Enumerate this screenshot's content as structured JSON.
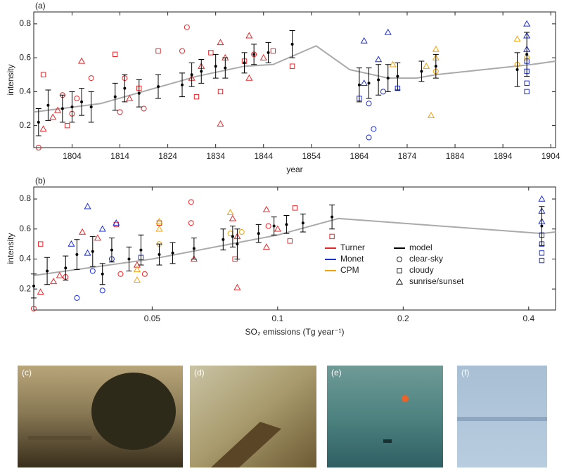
{
  "chart_data": [
    {
      "type": "scatter",
      "panel_label": "(a)",
      "xlabel": "year",
      "ylabel": "intensity",
      "xlim": [
        1796,
        1905
      ],
      "ylim": [
        0.07,
        0.87
      ],
      "xticks": [
        1804,
        1814,
        1824,
        1834,
        1844,
        1854,
        1864,
        1874,
        1884,
        1894,
        1904
      ],
      "yticks": [
        0.2,
        0.4,
        0.6,
        0.8
      ],
      "series": [
        {
          "name": "Turner",
          "color": "#e8262a",
          "x": [
            1797,
            1798,
            1798,
            1800,
            1801,
            1802,
            1803,
            1804,
            1805,
            1806,
            1808,
            1813,
            1814,
            1815,
            1816,
            1818,
            1819,
            1822,
            1827,
            1828,
            1829,
            1830,
            1831,
            1833,
            1835,
            1835,
            1835,
            1836,
            1840,
            1841,
            1841,
            1842,
            1844,
            1846,
            1850
          ],
          "values": [
            0.07,
            0.5,
            0.18,
            0.25,
            0.29,
            0.38,
            0.2,
            0.27,
            0.36,
            0.58,
            0.48,
            0.62,
            0.28,
            0.48,
            0.36,
            0.42,
            0.3,
            0.64,
            0.64,
            0.78,
            0.48,
            0.37,
            0.55,
            0.63,
            0.69,
            0.21,
            0.4,
            0.6,
            0.58,
            0.73,
            0.48,
            0.62,
            0.6,
            0.64,
            0.55
          ],
          "markers": [
            "o",
            "s",
            "^",
            "^",
            "^",
            "o",
            "s",
            "o",
            "o",
            "^",
            "o",
            "s",
            "o",
            "o",
            "^",
            "s",
            "o",
            "s",
            "o",
            "o",
            "^",
            "s",
            "^",
            "s",
            "^",
            "^",
            "s",
            "^",
            "s",
            "^",
            "^",
            "o",
            "^",
            "s",
            "s"
          ]
        },
        {
          "name": "Monet",
          "color": "#1f2fd6",
          "x": [
            1864,
            1865,
            1865,
            1866,
            1866,
            1867,
            1868,
            1869,
            1870,
            1872,
            1899,
            1899,
            1899,
            1899,
            1899,
            1899,
            1899
          ],
          "values": [
            0.36,
            0.7,
            0.45,
            0.33,
            0.13,
            0.18,
            0.59,
            0.4,
            0.75,
            0.42,
            0.8,
            0.73,
            0.65,
            0.58,
            0.52,
            0.45,
            0.4
          ],
          "markers": [
            "s",
            "^",
            "^",
            "o",
            "o",
            "o",
            "^",
            "o",
            "^",
            "s",
            "^",
            "^",
            "^",
            "s",
            "s",
            "s",
            "s"
          ]
        },
        {
          "name": "CPM",
          "color": "#f0a30a",
          "x": [
            1871,
            1878,
            1879,
            1880,
            1880,
            1880,
            1897,
            1897,
            1899
          ],
          "values": [
            0.56,
            0.55,
            0.26,
            0.65,
            0.6,
            0.52,
            0.71,
            0.56,
            0.6
          ],
          "markers": [
            "^",
            "^",
            "^",
            "^",
            "^",
            "o",
            "^",
            "o",
            "o"
          ]
        },
        {
          "name": "model",
          "color": "#000000",
          "x": [
            1797,
            1799,
            1802,
            1804,
            1806,
            1808,
            1813,
            1815,
            1818,
            1822,
            1827,
            1829,
            1831,
            1834,
            1836,
            1840,
            1842,
            1845,
            1850,
            1864,
            1866,
            1868,
            1870,
            1872,
            1877,
            1880,
            1897,
            1899
          ],
          "values": [
            0.22,
            0.32,
            0.3,
            0.31,
            0.34,
            0.31,
            0.37,
            0.42,
            0.39,
            0.43,
            0.44,
            0.5,
            0.52,
            0.55,
            0.54,
            0.57,
            0.62,
            0.63,
            0.68,
            0.44,
            0.45,
            0.47,
            0.48,
            0.49,
            0.52,
            0.55,
            0.53,
            0.62
          ],
          "errors": [
            0.08,
            0.09,
            0.08,
            0.09,
            0.08,
            0.09,
            0.08,
            0.08,
            0.08,
            0.07,
            0.07,
            0.07,
            0.07,
            0.07,
            0.06,
            0.06,
            0.06,
            0.06,
            0.08,
            0.1,
            0.09,
            0.09,
            0.08,
            0.08,
            0.06,
            0.07,
            0.1,
            0.13
          ]
        },
        {
          "color": "#aaaaaa",
          "x": [
            1796,
            1810,
            1820,
            1830,
            1840,
            1846,
            1855,
            1862,
            1870,
            1876,
            1880,
            1890,
            1900,
            1905
          ],
          "values": [
            0.28,
            0.33,
            0.41,
            0.49,
            0.55,
            0.56,
            0.67,
            0.53,
            0.48,
            0.48,
            0.5,
            0.53,
            0.56,
            0.58
          ]
        }
      ]
    },
    {
      "type": "scatter",
      "panel_label": "(b)",
      "xlabel": "SO₂ emissions (Tg year⁻¹)",
      "ylabel": "intensity",
      "xscale": "log",
      "xlim": [
        0.026,
        0.464
      ],
      "ylim": [
        0.06,
        0.88
      ],
      "xticks": [
        0.05,
        0.1,
        0.2,
        0.4
      ],
      "yticks": [
        0.2,
        0.4,
        0.6,
        0.8
      ],
      "series": [
        {
          "name": "Turner",
          "color": "#e8262a",
          "x": [
            0.026,
            0.027,
            0.027,
            0.029,
            0.03,
            0.031,
            0.034,
            0.037,
            0.041,
            0.042,
            0.046,
            0.048,
            0.052,
            0.062,
            0.062,
            0.063,
            0.078,
            0.08,
            0.079,
            0.08,
            0.094,
            0.094,
            0.095,
            0.1,
            0.107,
            0.11,
            0.135
          ],
          "values": [
            0.07,
            0.5,
            0.18,
            0.25,
            0.29,
            0.28,
            0.58,
            0.54,
            0.63,
            0.3,
            0.36,
            0.3,
            0.64,
            0.64,
            0.78,
            0.4,
            0.67,
            0.21,
            0.4,
            0.55,
            0.73,
            0.48,
            0.62,
            0.6,
            0.52,
            0.74,
            0.55
          ],
          "markers": [
            "o",
            "s",
            "^",
            "^",
            "^",
            "o",
            "^",
            "^",
            "s",
            "o",
            "^",
            "o",
            "s",
            "o",
            "o",
            "^",
            "^",
            "^",
            "s",
            "^",
            "^",
            "^",
            "o",
            "^",
            "s",
            "s",
            "s"
          ]
        },
        {
          "name": "Monet",
          "color": "#1f2fd6",
          "x": [
            0.032,
            0.033,
            0.035,
            0.035,
            0.036,
            0.038,
            0.038,
            0.04,
            0.041,
            0.047,
            0.43,
            0.43,
            0.43,
            0.43,
            0.43,
            0.43,
            0.43
          ],
          "values": [
            0.5,
            0.14,
            0.75,
            0.44,
            0.32,
            0.19,
            0.6,
            0.4,
            0.64,
            0.41,
            0.8,
            0.72,
            0.65,
            0.56,
            0.5,
            0.44,
            0.39
          ],
          "markers": [
            "^",
            "o",
            "^",
            "^",
            "o",
            "o",
            "^",
            "o",
            "^",
            "s",
            "^",
            "^",
            "^",
            "s",
            "s",
            "s",
            "s"
          ]
        },
        {
          "name": "CPM",
          "color": "#f0a30a",
          "x": [
            0.046,
            0.046,
            0.052,
            0.052,
            0.052,
            0.077,
            0.077,
            0.082
          ],
          "values": [
            0.26,
            0.33,
            0.65,
            0.6,
            0.5,
            0.71,
            0.57,
            0.58
          ],
          "markers": [
            "^",
            "^",
            "^",
            "^",
            "o",
            "^",
            "o",
            "o"
          ]
        },
        {
          "name": "model",
          "color": "#000000",
          "x": [
            0.026,
            0.028,
            0.031,
            0.033,
            0.036,
            0.038,
            0.04,
            0.044,
            0.047,
            0.052,
            0.056,
            0.063,
            0.074,
            0.078,
            0.08,
            0.09,
            0.098,
            0.105,
            0.115,
            0.135,
            0.43
          ],
          "values": [
            0.22,
            0.32,
            0.34,
            0.43,
            0.45,
            0.3,
            0.46,
            0.4,
            0.46,
            0.43,
            0.44,
            0.47,
            0.53,
            0.55,
            0.5,
            0.57,
            0.62,
            0.63,
            0.64,
            0.68,
            0.62
          ],
          "errors": [
            0.08,
            0.09,
            0.08,
            0.1,
            0.1,
            0.07,
            0.08,
            0.08,
            0.1,
            0.07,
            0.07,
            0.07,
            0.07,
            0.07,
            0.1,
            0.06,
            0.06,
            0.06,
            0.06,
            0.08,
            0.13
          ]
        },
        {
          "color": "#aaaaaa",
          "x": [
            0.026,
            0.05,
            0.1,
            0.14,
            0.43,
            0.464
          ],
          "values": [
            0.29,
            0.4,
            0.56,
            0.67,
            0.57,
            0.58
          ]
        }
      ],
      "marker_legend": [
        {
          "name": "clear-sky",
          "marker": "o"
        },
        {
          "name": "cloudy",
          "marker": "s"
        },
        {
          "name": "sunrise/sunset",
          "marker": "^"
        }
      ]
    }
  ],
  "paintings": [
    {
      "label": "(c)"
    },
    {
      "label": "(d)"
    },
    {
      "label": "(e)"
    },
    {
      "label": "(f)"
    }
  ]
}
